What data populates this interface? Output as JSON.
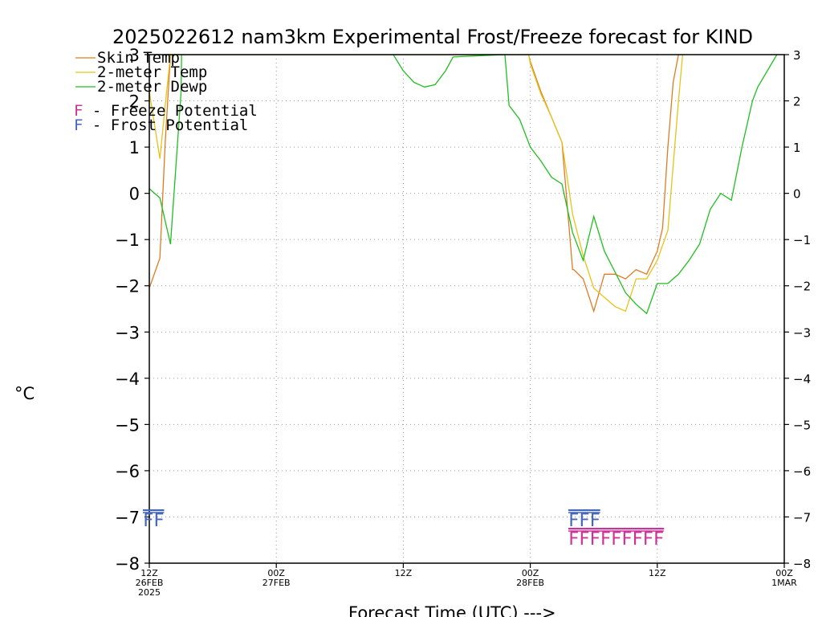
{
  "chart_data": {
    "type": "line",
    "title": "2025022612 nam3km Experimental Frost/Freeze forecast for KIND",
    "xlabel": "Forecast Time (UTC) --->",
    "ylabel": "°C",
    "ylim": [
      -8,
      3
    ],
    "xlim": [
      0,
      60
    ],
    "x_unit": "hours since 12Z 26FEB2025",
    "grid": true,
    "yticks": [
      -8,
      -7,
      -6,
      -5,
      -4,
      -3,
      -2,
      -1,
      0,
      1,
      2,
      3
    ],
    "xticks": [
      {
        "x": 0,
        "labels": [
          "12Z",
          "26FEB",
          "2025"
        ]
      },
      {
        "x": 12,
        "labels": [
          "00Z",
          "27FEB"
        ]
      },
      {
        "x": 24,
        "labels": [
          "12Z"
        ]
      },
      {
        "x": 36,
        "labels": [
          "00Z",
          "28FEB"
        ]
      },
      {
        "x": 48,
        "labels": [
          "12Z"
        ]
      },
      {
        "x": 60,
        "labels": [
          "00Z",
          "1MAR"
        ]
      }
    ],
    "series": [
      {
        "name": "Skin Temp",
        "color": "#e07b24",
        "x": [
          0,
          1,
          1.5,
          2,
          35.85,
          36,
          37,
          38,
          39,
          40,
          40.1,
          41,
          42,
          43,
          44,
          45,
          46,
          47,
          48,
          48.5,
          49,
          49.5,
          50,
          50.2
        ],
        "y": [
          -2.05,
          -1.4,
          1.1,
          3,
          3,
          2.85,
          2.2,
          1.65,
          1.1,
          -1.65,
          -1.65,
          -1.85,
          -2.55,
          -1.75,
          -1.75,
          -1.85,
          -1.65,
          -1.75,
          -1.25,
          -0.75,
          1.0,
          2.4,
          3,
          3
        ]
      },
      {
        "name": "2-meter Temp",
        "color": "#e6c21a",
        "x": [
          0,
          1,
          1.5,
          2,
          35.85,
          36,
          37,
          38,
          39,
          40,
          40.5,
          41,
          42,
          43,
          44,
          45,
          46,
          47,
          48,
          49,
          49.5,
          50,
          50.4
        ],
        "y": [
          2.2,
          0.75,
          1.9,
          3,
          3,
          2.8,
          2.15,
          1.65,
          1.1,
          -0.45,
          -0.9,
          -1.35,
          -2.05,
          -2.25,
          -2.45,
          -2.55,
          -1.85,
          -1.85,
          -1.45,
          -0.8,
          0.6,
          2.0,
          3
        ]
      },
      {
        "name": "2-meter Dewp",
        "color": "#1fbf1f",
        "x": [
          0,
          1,
          2,
          3,
          3.05,
          23.05,
          24,
          25,
          26,
          27,
          28,
          28.7,
          33.6,
          34,
          35,
          36,
          37,
          38,
          39,
          40,
          41,
          42,
          43,
          44,
          45,
          46,
          47,
          48,
          49,
          50,
          51,
          52,
          53,
          54,
          55,
          56,
          57,
          57.5,
          59.3
        ],
        "y": [
          0.1,
          -0.1,
          -1.1,
          2.2,
          3,
          3,
          2.65,
          2.4,
          2.3,
          2.35,
          2.65,
          2.95,
          3,
          1.9,
          1.6,
          1.0,
          0.7,
          0.35,
          0.2,
          -0.85,
          -1.45,
          -0.5,
          -1.25,
          -1.7,
          -2.15,
          -2.4,
          -2.6,
          -1.95,
          -1.95,
          -1.75,
          -1.45,
          -1.1,
          -0.35,
          0.0,
          -0.15,
          1.0,
          2.0,
          2.3,
          3
        ]
      }
    ],
    "legend": {
      "placement": "top-left",
      "flags": [
        {
          "letter": "F",
          "text": " - Freeze Potential",
          "color": "#cc3399"
        },
        {
          "letter": "F",
          "text": " - Frost Potential",
          "color": "#4466bb"
        }
      ]
    },
    "annotations": [
      {
        "type": "frost",
        "text": "FF",
        "color": "#4466bb",
        "x": 0.0,
        "y": -7.2
      },
      {
        "type": "frost",
        "text": "FFF",
        "color": "#4466bb",
        "x": 40.2,
        "y": -7.2
      },
      {
        "type": "freeze",
        "text": "FFFFFFFFF",
        "color": "#cc3399",
        "x": 40.2,
        "y": -7.6
      }
    ]
  }
}
